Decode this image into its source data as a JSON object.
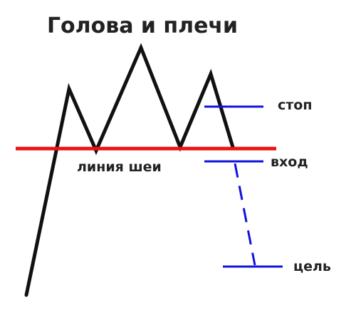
{
  "title": "Голова и плечи",
  "labels": {
    "neckline": "линия шеи",
    "stop": "стоп",
    "entry": "вход",
    "target": "цель"
  },
  "colors": {
    "price_line": "#111111",
    "neckline": "#ee1111",
    "levels": "#1111dd",
    "text": "#222222"
  }
}
